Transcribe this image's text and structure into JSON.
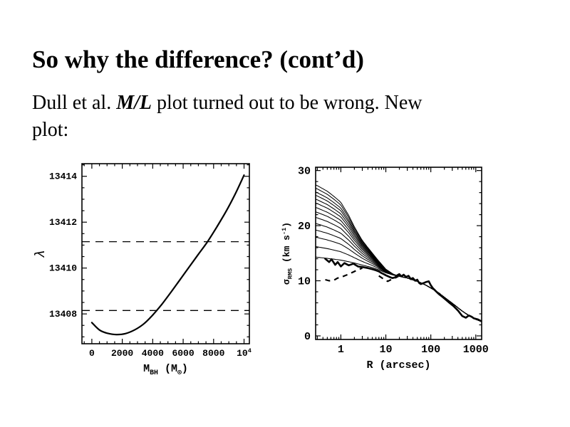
{
  "slide": {
    "title": "So why the difference?  (cont’d)",
    "body": {
      "line1_pre": "Dull et al. ",
      "line1_math": "M/L",
      "line1_post": " plot turned out to be wrong. New",
      "line2": "plot:"
    },
    "background_color": "#ffffff",
    "ink_color": "#000000"
  },
  "chart_data": [
    {
      "type": "line",
      "id": "lambda-vs-mbh",
      "title": "",
      "xlabel": "M_{BH} (M_{⊙})",
      "ylabel": "λ",
      "xlim": [
        -650,
        10350
      ],
      "ylim": [
        13406.7,
        13414.55
      ],
      "grid": false,
      "xticks": {
        "major": [
          0,
          2000,
          4000,
          6000,
          8000,
          10000
        ],
        "labels": [
          "0",
          "2000",
          "4000",
          "6000",
          "8000",
          "10^{4}"
        ],
        "minor_step": 500
      },
      "yticks": {
        "major": [
          13408,
          13410,
          13412,
          13414
        ],
        "labels": [
          "13408",
          "13410",
          "13412",
          "13414"
        ],
        "minor_step": 0.5
      },
      "dashed_levels": [
        13408.15,
        13411.15
      ],
      "curve": [
        [
          0,
          13407.62
        ],
        [
          500,
          13407.3
        ],
        [
          1000,
          13407.16
        ],
        [
          1600,
          13407.1
        ],
        [
          2200,
          13407.14
        ],
        [
          2800,
          13407.3
        ],
        [
          3400,
          13407.56
        ],
        [
          4000,
          13407.95
        ],
        [
          4600,
          13408.42
        ],
        [
          5200,
          13408.95
        ],
        [
          5800,
          13409.5
        ],
        [
          6400,
          13410.05
        ],
        [
          7000,
          13410.6
        ],
        [
          7600,
          13411.15
        ],
        [
          8200,
          13411.78
        ],
        [
          8800,
          13412.45
        ],
        [
          9400,
          13413.2
        ],
        [
          10000,
          13414.05
        ]
      ]
    },
    {
      "type": "line",
      "id": "sigma-vs-radius",
      "title": "",
      "xlabel": "R (arcsec)",
      "ylabel": "σ_{RMS} (km s^{-1})",
      "xscale": "log",
      "xlim": [
        0.275,
        1350
      ],
      "ylim": [
        -0.65,
        30.6
      ],
      "grid": false,
      "xticks": {
        "major": [
          1,
          10,
          100,
          1000
        ],
        "labels": [
          "1",
          "10",
          "100",
          "1000"
        ]
      },
      "yticks": {
        "major": [
          0,
          10,
          20,
          30
        ],
        "labels": [
          "0",
          "10",
          "20",
          "30"
        ],
        "minor_step": 2
      },
      "model_curves": {
        "start_sigmas": [
          14.3,
          16.2,
          17.9,
          19.2,
          20.4,
          21.5,
          22.5,
          23.3,
          24.1,
          24.8,
          25.5,
          26.1,
          26.8,
          27.4
        ],
        "common_profile": [
          [
            0.28,
            13.55
          ],
          [
            1,
            13.15
          ],
          [
            2,
            12.85
          ],
          [
            3,
            12.6
          ],
          [
            5,
            12.25
          ],
          [
            7,
            11.9
          ],
          [
            10,
            11.4
          ],
          [
            15,
            11.0
          ],
          [
            20,
            10.8
          ],
          [
            30,
            10.5
          ],
          [
            50,
            9.9
          ],
          [
            70,
            9.4
          ],
          [
            100,
            8.7
          ],
          [
            150,
            7.8
          ],
          [
            200,
            7.0
          ],
          [
            300,
            5.9
          ],
          [
            500,
            4.5
          ],
          [
            700,
            3.7
          ],
          [
            1000,
            3.0
          ],
          [
            1350,
            2.6
          ]
        ],
        "excess_decay": [
          [
            0.28,
            1.0
          ],
          [
            0.5,
            0.93
          ],
          [
            0.7,
            0.87
          ],
          [
            1,
            0.8
          ],
          [
            1.5,
            0.64
          ],
          [
            2,
            0.5
          ],
          [
            3,
            0.34
          ],
          [
            4,
            0.26
          ],
          [
            5,
            0.2
          ],
          [
            7,
            0.12
          ],
          [
            10,
            0.05
          ],
          [
            15,
            0.01
          ],
          [
            25,
            0.0
          ],
          [
            1350,
            0.0
          ]
        ]
      },
      "data_curve": [
        [
          0.45,
          14.0
        ],
        [
          0.55,
          13.4
        ],
        [
          0.62,
          13.9
        ],
        [
          0.75,
          12.9
        ],
        [
          0.85,
          13.4
        ],
        [
          1.0,
          12.6
        ],
        [
          1.2,
          13.2
        ],
        [
          1.5,
          12.8
        ],
        [
          1.9,
          13.1
        ],
        [
          2.4,
          12.6
        ],
        [
          3,
          12.5
        ],
        [
          4,
          12.3
        ],
        [
          5,
          12.1
        ],
        [
          6,
          11.9
        ],
        [
          7,
          11.7
        ],
        [
          8,
          11.4
        ],
        [
          9,
          11.2
        ],
        [
          10,
          11.0
        ],
        [
          12,
          10.7
        ],
        [
          14,
          10.5
        ],
        [
          16,
          10.6
        ],
        [
          18,
          11.0
        ],
        [
          20,
          11.2
        ],
        [
          22,
          10.8
        ],
        [
          25,
          11.1
        ],
        [
          28,
          10.7
        ],
        [
          32,
          10.9
        ],
        [
          36,
          10.3
        ],
        [
          40,
          10.5
        ],
        [
          45,
          10.0
        ],
        [
          50,
          10.2
        ],
        [
          55,
          9.6
        ],
        [
          60,
          9.4
        ],
        [
          70,
          9.6
        ],
        [
          80,
          9.8
        ],
        [
          90,
          9.9
        ],
        [
          100,
          9.2
        ],
        [
          110,
          8.7
        ],
        [
          130,
          8.1
        ],
        [
          150,
          7.6
        ],
        [
          180,
          7.1
        ],
        [
          220,
          6.5
        ],
        [
          260,
          6.0
        ],
        [
          320,
          5.4
        ],
        [
          400,
          4.6
        ],
        [
          500,
          3.6
        ],
        [
          600,
          3.3
        ],
        [
          700,
          3.7
        ],
        [
          800,
          3.5
        ],
        [
          900,
          3.2
        ],
        [
          1100,
          3.0
        ],
        [
          1300,
          2.7
        ]
      ],
      "dashed_segments": [
        [
          [
            0.45,
            10.2
          ],
          [
            0.55,
            10.0
          ],
          [
            0.7,
            10.1
          ],
          [
            0.85,
            10.5
          ],
          [
            1.0,
            10.6
          ],
          [
            1.2,
            10.9
          ],
          [
            1.5,
            11.2
          ],
          [
            1.9,
            11.6
          ],
          [
            2.4,
            12.0
          ],
          [
            3.0,
            12.3
          ]
        ],
        [
          [
            7,
            10.9
          ],
          [
            9,
            10.3
          ],
          [
            11,
            9.9
          ],
          [
            13,
            10.2
          ],
          [
            16,
            10.5
          ],
          [
            19,
            10.8
          ]
        ]
      ]
    }
  ]
}
